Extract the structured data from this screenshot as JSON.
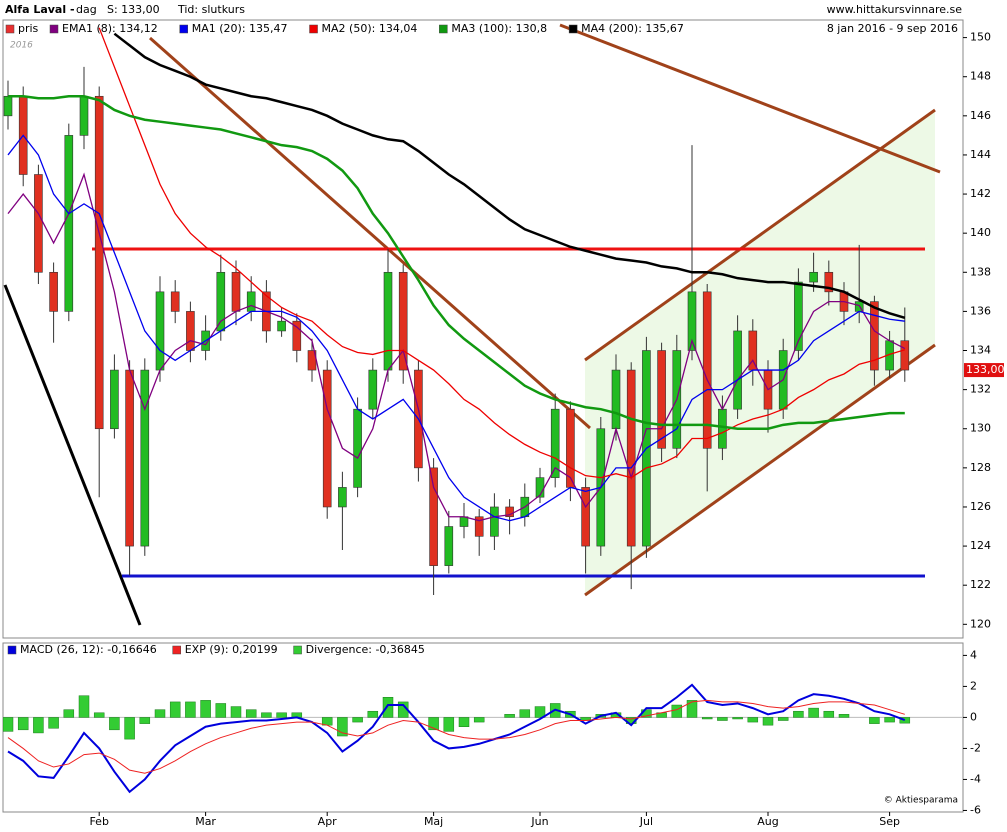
{
  "header": {
    "name": "Alfa Laval -",
    "period": "dag",
    "last": "S: 133,00",
    "time": "Tid: slutkurs",
    "site": "www.hittakursvinnare.se",
    "range": "8 jan 2016 - 9 sep 2016",
    "year": "2016",
    "copyright": "© Aktiesparama"
  },
  "chart_data": [
    {
      "type": "candlestick",
      "price_name": "pris",
      "price_color": "#e83030",
      "up_color": "#22bb22",
      "down_color": "#e03020",
      "last_price_label": "133,00",
      "categories": [
        null,
        null,
        null,
        null,
        null,
        null,
        "Feb",
        null,
        null,
        null,
        null,
        null,
        null,
        "Mar",
        null,
        null,
        null,
        null,
        null,
        null,
        null,
        "Apr",
        null,
        null,
        null,
        null,
        null,
        null,
        "Maj",
        null,
        null,
        null,
        null,
        null,
        null,
        "Jun",
        null,
        null,
        null,
        null,
        null,
        null,
        "Jul",
        null,
        null,
        null,
        null,
        null,
        null,
        null,
        "Aug",
        null,
        null,
        null,
        null,
        null,
        null,
        null,
        "Sep",
        null
      ],
      "open": [
        146,
        147,
        143,
        138,
        136,
        145,
        147,
        130,
        133,
        124,
        133,
        137,
        136,
        134,
        135,
        138,
        136,
        137,
        135,
        135.5,
        134,
        133,
        126,
        127,
        131,
        133,
        138,
        133,
        128,
        123,
        125,
        125.5,
        124.5,
        126,
        125.5,
        126.5,
        127.5,
        131,
        127,
        124,
        130,
        133,
        124,
        134,
        129,
        134,
        137,
        129,
        131,
        135,
        133,
        131,
        134,
        137.5,
        138,
        137,
        136,
        136.5,
        133,
        134.5
      ],
      "high": [
        147.8,
        147.5,
        143.5,
        138.5,
        145.6,
        148.5,
        147.5,
        133.8,
        133.5,
        133.6,
        137.8,
        137.6,
        136.5,
        135.8,
        138.9,
        138.6,
        137.8,
        137.6,
        136.2,
        135.9,
        134.6,
        133.5,
        127.8,
        131.6,
        133.6,
        139.2,
        138.4,
        133.5,
        128.5,
        125.8,
        126.2,
        125.9,
        126.7,
        126.4,
        127.2,
        128,
        131.8,
        131.4,
        127.5,
        130.6,
        133.8,
        133.4,
        134.7,
        134.4,
        134.8,
        144.5,
        137.4,
        131.7,
        135.8,
        135.6,
        133.5,
        134.6,
        138.2,
        139,
        138.6,
        137.5,
        139.4,
        136.8,
        135,
        136.2
      ],
      "low": [
        145.3,
        142.4,
        137.4,
        134.4,
        135.5,
        144.3,
        126.5,
        129.5,
        122.5,
        123.5,
        132.4,
        135.4,
        133.4,
        133.5,
        134.5,
        135.3,
        135.5,
        134.4,
        134.7,
        133.4,
        132.4,
        125.4,
        123.8,
        126.5,
        130.5,
        132.4,
        132.3,
        127.3,
        121.5,
        122.6,
        124.4,
        123.5,
        123.8,
        124.6,
        125,
        126.2,
        127,
        126.3,
        122.6,
        123.5,
        129.4,
        121.8,
        123.4,
        128.3,
        128.5,
        133.5,
        126.8,
        128.4,
        130.5,
        132.2,
        129.8,
        130.5,
        133.5,
        137,
        136.3,
        135.3,
        135.4,
        132.2,
        132.6,
        132.4
      ],
      "close": [
        147,
        143,
        138,
        136,
        145,
        147,
        130,
        133,
        124,
        133,
        137,
        136,
        134,
        135,
        138,
        136,
        137,
        135,
        135.5,
        134,
        133,
        126,
        127,
        131,
        133,
        138,
        133,
        128,
        123,
        125,
        125.5,
        124.5,
        126,
        125.5,
        126.5,
        127.5,
        131,
        127,
        124,
        130,
        133,
        124,
        134,
        129,
        134,
        137,
        129,
        131,
        135,
        133,
        131,
        134,
        137.5,
        138,
        137,
        136,
        136.5,
        133,
        134.5,
        133
      ],
      "series": [
        {
          "name": "EMA1 (8): 134,12",
          "color": "#800080",
          "values": [
            141,
            142,
            141,
            139.5,
            141,
            143,
            140,
            137,
            133,
            131,
            133,
            134,
            134.5,
            134.3,
            135.5,
            136,
            136.3,
            136,
            135.7,
            135.2,
            134.5,
            131,
            129,
            128.5,
            130,
            133,
            134,
            131,
            127,
            125.5,
            125.5,
            125.3,
            125.5,
            125.6,
            126,
            126.6,
            128,
            127.5,
            126,
            127,
            130,
            127.5,
            130,
            130,
            131.5,
            134.5,
            132.5,
            131,
            132.5,
            133.5,
            132,
            132.5,
            134.5,
            136,
            136.5,
            136.5,
            136.3,
            135,
            134.5,
            134.1
          ]
        },
        {
          "name": "MA1 (20): 135,47",
          "color": "#0000ee",
          "values": [
            144,
            145,
            144,
            142,
            141,
            141.5,
            141,
            139,
            137,
            135,
            134,
            133.5,
            134,
            134.5,
            135,
            135.5,
            136,
            136,
            136,
            135.7,
            135,
            134,
            132.5,
            131,
            130.5,
            131,
            131.5,
            130.5,
            129,
            127.5,
            126.5,
            126,
            125.5,
            125.3,
            125.5,
            126,
            126.5,
            127,
            126.8,
            127,
            128,
            128,
            129,
            129.5,
            130,
            131.5,
            132,
            132,
            132.5,
            133,
            133,
            133,
            133.5,
            134.5,
            135,
            135.5,
            136,
            135.8,
            135.6,
            135.5
          ]
        },
        {
          "name": "MA2 (50): 134,04",
          "color": "#ee0000",
          "values": [
            null,
            null,
            null,
            null,
            null,
            null,
            150.5,
            148.5,
            146.5,
            144.5,
            142.5,
            141,
            140,
            139.3,
            138.8,
            138.2,
            137.5,
            136.8,
            136.2,
            135.8,
            135.5,
            134.8,
            134.2,
            133.9,
            133.8,
            134,
            134,
            133.5,
            133,
            132.3,
            131.5,
            131,
            130.3,
            129.7,
            129.2,
            128.8,
            128.5,
            128,
            127.6,
            127.5,
            127.7,
            127.5,
            128,
            128.2,
            128.6,
            129.5,
            129.5,
            129.8,
            130.2,
            130.5,
            130.7,
            131,
            131.6,
            132,
            132.5,
            132.8,
            133.3,
            133.5,
            133.8,
            134.04
          ]
        },
        {
          "name": "MA3 (100): 130,8",
          "color": "#119911",
          "values": [
            147,
            147,
            146.9,
            146.9,
            147,
            147,
            146.8,
            146.3,
            146,
            145.8,
            145.7,
            145.6,
            145.5,
            145.4,
            145.3,
            145.1,
            144.9,
            144.7,
            144.5,
            144.4,
            144.2,
            143.8,
            143.2,
            142.3,
            141,
            140,
            138.8,
            137.6,
            136.3,
            135.3,
            134.6,
            134,
            133.4,
            132.8,
            132.2,
            131.8,
            131.5,
            131.3,
            131.1,
            131,
            130.8,
            130.5,
            130.3,
            130.2,
            130.2,
            130.2,
            130.2,
            130.1,
            130,
            130,
            130,
            130.2,
            130.3,
            130.3,
            130.4,
            130.5,
            130.6,
            130.7,
            130.8,
            130.8
          ]
        },
        {
          "name": "MA4 (200): 135,67",
          "color": "#000000",
          "values": [
            null,
            null,
            null,
            null,
            null,
            null,
            null,
            150.2,
            149.6,
            149,
            148.6,
            148.3,
            148,
            147.6,
            147.4,
            147.2,
            147,
            146.9,
            146.7,
            146.5,
            146.3,
            146,
            145.6,
            145.3,
            145,
            144.8,
            144.7,
            144.2,
            143.6,
            143,
            142.5,
            141.9,
            141.3,
            140.7,
            140.2,
            139.9,
            139.6,
            139.3,
            139.1,
            138.9,
            138.7,
            138.6,
            138.5,
            138.3,
            138.2,
            138,
            138,
            137.9,
            137.7,
            137.6,
            137.5,
            137.5,
            137.4,
            137.3,
            137.2,
            137,
            136.6,
            136.2,
            135.9,
            135.67
          ]
        }
      ],
      "ylim": [
        119.3,
        150.9
      ],
      "yticks": [
        120,
        122,
        124,
        126,
        128,
        130,
        132,
        134,
        136,
        138,
        140,
        142,
        144,
        146,
        148,
        150
      ]
    },
    {
      "type": "macd",
      "series": [
        {
          "name": "MACD (26, 12): -0,16646",
          "color": "#0000dd",
          "values": [
            -2.2,
            -2.8,
            -3.8,
            -3.9,
            -2.5,
            -1,
            -2,
            -3.5,
            -4.8,
            -4,
            -2.8,
            -1.8,
            -1.2,
            -0.6,
            -0.4,
            -0.3,
            -0.2,
            -0.2,
            -0.1,
            0,
            -0.3,
            -1,
            -2.2,
            -1.5,
            -0.6,
            0.8,
            0.8,
            -0.3,
            -1.5,
            -2,
            -1.9,
            -1.7,
            -1.4,
            -1.1,
            -0.6,
            -0.1,
            0.5,
            0.2,
            -0.4,
            0.1,
            0.3,
            -0.5,
            0.6,
            0.6,
            1.3,
            2.1,
            1,
            0.8,
            0.9,
            0.6,
            0.2,
            0.4,
            1.1,
            1.5,
            1.4,
            1.2,
            0.9,
            0.4,
            0.2,
            -0.17
          ]
        },
        {
          "name": "EXP (9): 0,20199",
          "color": "#ee2222",
          "values": [
            -1.3,
            -2,
            -2.8,
            -3.2,
            -3,
            -2.4,
            -2.3,
            -2.7,
            -3.4,
            -3.6,
            -3.3,
            -2.8,
            -2.2,
            -1.7,
            -1.3,
            -1,
            -0.7,
            -0.5,
            -0.4,
            -0.3,
            -0.3,
            -0.5,
            -1,
            -1.2,
            -1,
            -0.5,
            -0.2,
            -0.3,
            -0.7,
            -1.1,
            -1.3,
            -1.4,
            -1.4,
            -1.3,
            -1.1,
            -0.8,
            -0.4,
            -0.2,
            -0.2,
            -0.1,
            0,
            -0.1,
            0.1,
            0.3,
            0.5,
            1,
            1.1,
            1,
            1,
            0.9,
            0.7,
            0.6,
            0.7,
            0.9,
            1,
            1,
            0.9,
            0.8,
            0.5,
            0.2
          ]
        },
        {
          "name": "Divergence: -0,36845",
          "color": "#33cc33",
          "bars": true,
          "values": [
            -0.9,
            -0.8,
            -1,
            -0.7,
            0.5,
            1.4,
            0.3,
            -0.8,
            -1.4,
            -0.4,
            0.5,
            1,
            1,
            1.1,
            0.9,
            0.7,
            0.5,
            0.3,
            0.3,
            0.3,
            0,
            -0.5,
            -1.2,
            -0.3,
            0.4,
            1.3,
            1,
            0,
            -0.8,
            -0.9,
            -0.6,
            -0.3,
            0,
            0.2,
            0.5,
            0.7,
            0.9,
            0.4,
            -0.2,
            0.2,
            0.3,
            -0.4,
            0.5,
            0.3,
            0.8,
            1.1,
            -0.1,
            -0.2,
            -0.1,
            -0.3,
            -0.5,
            -0.2,
            0.4,
            0.6,
            0.4,
            0.2,
            0,
            -0.4,
            -0.3,
            -0.37
          ]
        }
      ],
      "ylim": [
        -6.1,
        4.8
      ],
      "yticks": [
        4,
        2,
        0,
        -2,
        -4,
        -6
      ]
    }
  ]
}
